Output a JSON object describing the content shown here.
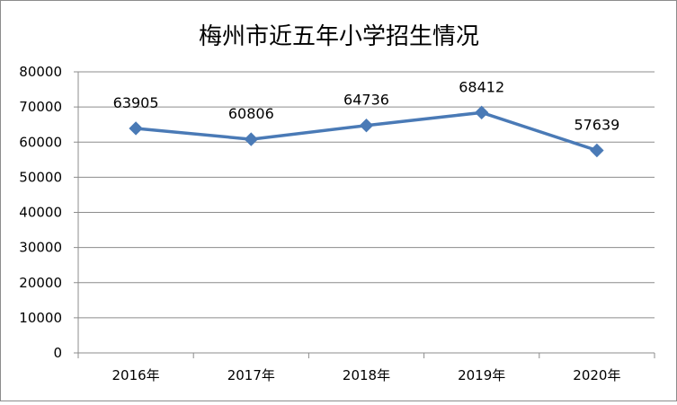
{
  "chart_data": {
    "type": "line",
    "title": "梅州市近五年小学招生情况",
    "categories": [
      "2016年",
      "2017年",
      "2018年",
      "2019年",
      "2020年"
    ],
    "series": [
      {
        "values": [
          63905,
          60806,
          64736,
          68412,
          57639
        ]
      }
    ],
    "data_labels": [
      "63905",
      "60806",
      "64736",
      "68412",
      "57639"
    ],
    "y_ticks": [
      "0",
      "10000",
      "20000",
      "30000",
      "40000",
      "50000",
      "60000",
      "70000",
      "80000"
    ],
    "ylim": [
      0,
      80000
    ],
    "grid": true,
    "legend": "none",
    "line_color": "#4a7ab6"
  }
}
